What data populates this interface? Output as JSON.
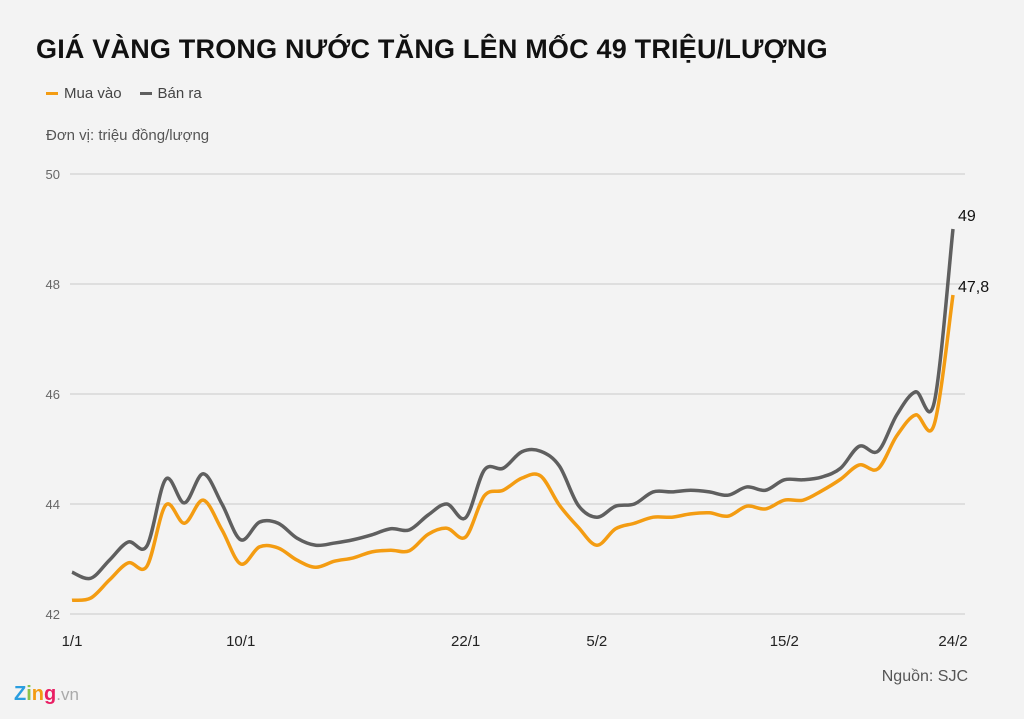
{
  "chart_data": {
    "type": "line",
    "title": "GIÁ VÀNG TRONG NƯỚC TĂNG LÊN MỐC 49 TRIỆU/LƯỢNG",
    "unit_label": "Đơn vị: triệu đồng/lượng",
    "source": "Nguồn: SJC",
    "ylim": [
      42,
      50
    ],
    "yticks": [
      "42",
      "44",
      "46",
      "48",
      "50"
    ],
    "ytick_values": [
      42,
      44,
      46,
      48,
      50
    ],
    "grid": true,
    "legend_position": "top-left",
    "categories": [
      "1/1",
      "",
      "",
      "",
      "",
      "",
      "",
      "",
      "",
      "10/1",
      "",
      "",
      "",
      "",
      "",
      "",
      "",
      "",
      "",
      "",
      "",
      "22/1",
      "",
      "",
      "",
      "",
      "",
      "",
      "5/2",
      "",
      "",
      "",
      "",
      "",
      "",
      "",
      "",
      "",
      "15/2",
      "",
      "",
      "",
      "",
      "",
      "",
      "",
      "",
      "24/2"
    ],
    "series": [
      {
        "name": "Mua vào",
        "color": "#f39c12",
        "end_label": "47,8",
        "values": [
          42.25,
          42.29,
          42.62,
          42.93,
          42.87,
          43.98,
          43.65,
          44.07,
          43.53,
          42.91,
          43.22,
          43.2,
          42.98,
          42.85,
          42.96,
          43.02,
          43.13,
          43.16,
          43.15,
          43.45,
          43.56,
          43.4,
          44.15,
          44.25,
          44.47,
          44.51,
          43.98,
          43.58,
          43.25,
          43.55,
          43.65,
          43.76,
          43.76,
          43.82,
          43.84,
          43.78,
          43.96,
          43.91,
          44.07,
          44.07,
          44.24,
          44.45,
          44.71,
          44.64,
          45.24,
          45.62,
          45.45,
          47.8
        ]
      },
      {
        "name": "Bán ra",
        "color": "#5f5f5f",
        "end_label": "49",
        "values": [
          42.76,
          42.65,
          42.98,
          43.31,
          43.24,
          44.45,
          44.02,
          44.55,
          44.0,
          43.35,
          43.67,
          43.65,
          43.38,
          43.25,
          43.29,
          43.35,
          43.44,
          43.55,
          43.53,
          43.8,
          44.0,
          43.75,
          44.62,
          44.65,
          44.95,
          44.96,
          44.69,
          43.98,
          43.76,
          43.96,
          44.0,
          44.22,
          44.22,
          44.25,
          44.22,
          44.16,
          44.31,
          44.25,
          44.44,
          44.44,
          44.49,
          44.65,
          45.05,
          44.96,
          45.62,
          46.04,
          45.85,
          49.0
        ]
      }
    ]
  },
  "branding": {
    "logo": "Zing.vn",
    "logo_main": "Zing",
    "logo_suffix": ".vn"
  }
}
